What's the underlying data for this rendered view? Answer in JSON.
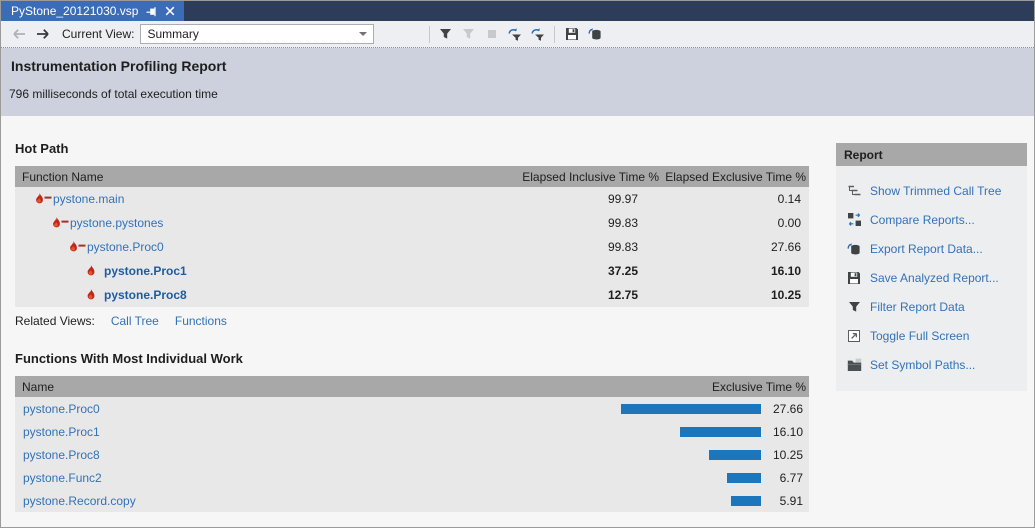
{
  "tab": {
    "title": "PyStone_20121030.vsp",
    "pin_icon": "pin-icon",
    "close_icon": "close-icon"
  },
  "toolbar": {
    "back_icon": "back-arrow-icon",
    "forward_icon": "forward-arrow-icon",
    "current_view_label": "Current View:",
    "view_value": "Summary",
    "dropdown_caret_icon": "chevron-down-icon",
    "icons": [
      "filter-icon",
      "filter-disabled-icon",
      "stop-disabled-icon",
      "reapply-filter-icon",
      "apply-filter-save-icon",
      "separator",
      "save-report-icon",
      "export-data-icon"
    ]
  },
  "header": {
    "title": "Instrumentation Profiling Report",
    "subtitle": "796 milliseconds of total execution time"
  },
  "hot_path": {
    "title": "Hot Path",
    "columns": [
      "Function Name",
      "Elapsed Inclusive Time %",
      "Elapsed Exclusive Time %"
    ],
    "rows": [
      {
        "name": "pystone.main",
        "inclusive": "99.97",
        "exclusive": "0.14",
        "indent": 0,
        "icon": "hot-path-flame-line-icon",
        "bold": false
      },
      {
        "name": "pystone.pystones",
        "inclusive": "99.83",
        "exclusive": "0.00",
        "indent": 1,
        "icon": "hot-path-flame-line-icon",
        "bold": false
      },
      {
        "name": "pystone.Proc0",
        "inclusive": "99.83",
        "exclusive": "27.66",
        "indent": 2,
        "icon": "hot-path-flame-line-icon",
        "bold": false
      },
      {
        "name": "pystone.Proc1",
        "inclusive": "37.25",
        "exclusive": "16.10",
        "indent": 3,
        "icon": "flame-icon",
        "bold": true
      },
      {
        "name": "pystone.Proc8",
        "inclusive": "12.75",
        "exclusive": "10.25",
        "indent": 3,
        "icon": "flame-icon",
        "bold": true
      }
    ],
    "related_views_label": "Related Views:",
    "related_views": [
      "Call Tree",
      "Functions"
    ]
  },
  "individual_work": {
    "title": "Functions With Most Individual Work",
    "columns": [
      "Name",
      "Exclusive Time %"
    ],
    "rows": [
      {
        "name": "pystone.Proc0",
        "value": 27.66,
        "display": "27.66"
      },
      {
        "name": "pystone.Proc1",
        "value": 16.1,
        "display": "16.10"
      },
      {
        "name": "pystone.Proc8",
        "value": 10.25,
        "display": "10.25"
      },
      {
        "name": "pystone.Func2",
        "value": 6.77,
        "display": "6.77"
      },
      {
        "name": "pystone.Record.copy",
        "value": 5.91,
        "display": "5.91"
      }
    ]
  },
  "report_panel": {
    "title": "Report",
    "items": [
      {
        "label": "Show Trimmed Call Tree",
        "icon": "call-tree-icon"
      },
      {
        "label": "Compare Reports...",
        "icon": "compare-reports-icon"
      },
      {
        "label": "Export Report Data...",
        "icon": "export-data-icon"
      },
      {
        "label": "Save Analyzed Report...",
        "icon": "save-report-icon"
      },
      {
        "label": "Filter Report Data",
        "icon": "filter-icon"
      },
      {
        "label": "Toggle Full Screen",
        "icon": "fullscreen-icon"
      },
      {
        "label": "Set Symbol Paths...",
        "icon": "symbol-paths-icon"
      }
    ]
  },
  "colors": {
    "tab_blue": "#3D6CB7",
    "tabstrip_dark": "#2C3C59",
    "link_blue": "#3272B8",
    "bar_blue": "#1C76BC",
    "table_header_gray": "#A8A8A8",
    "header_band": "#CDD1DD"
  }
}
